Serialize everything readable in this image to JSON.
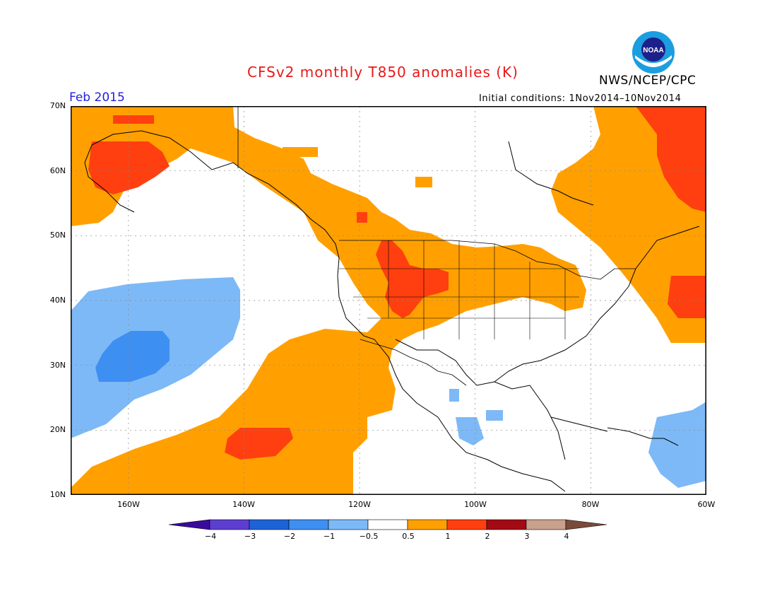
{
  "header": {
    "title": "CFSv2 monthly T850 anomalies (K)",
    "agency": "NWS/NCEP/CPC",
    "valid_month": "Feb 2015",
    "initial_conditions": "Initial conditions: 1Nov2014–10Nov2014"
  },
  "logo": {
    "text": "NOAA",
    "icon": "noaa-logo-icon"
  },
  "map": {
    "lat_labels": [
      "70N",
      "60N",
      "50N",
      "40N",
      "30N",
      "20N",
      "10N"
    ],
    "lon_labels": [
      "160W",
      "140W",
      "120W",
      "100W",
      "80W",
      "60W"
    ]
  },
  "colorbar": {
    "tick_labels": [
      "−4",
      "−3",
      "−2",
      "−1",
      "−0.5",
      "0.5",
      "1",
      "2",
      "3",
      "4"
    ],
    "colors": [
      "#3a0a9e",
      "#5c3ed1",
      "#1e63d6",
      "#3e8ff2",
      "#7db9f6",
      "#ffffff",
      "#ffa000",
      "#ff3f0f",
      "#a20a14",
      "#c9a08c",
      "#7a4b3a"
    ]
  }
}
